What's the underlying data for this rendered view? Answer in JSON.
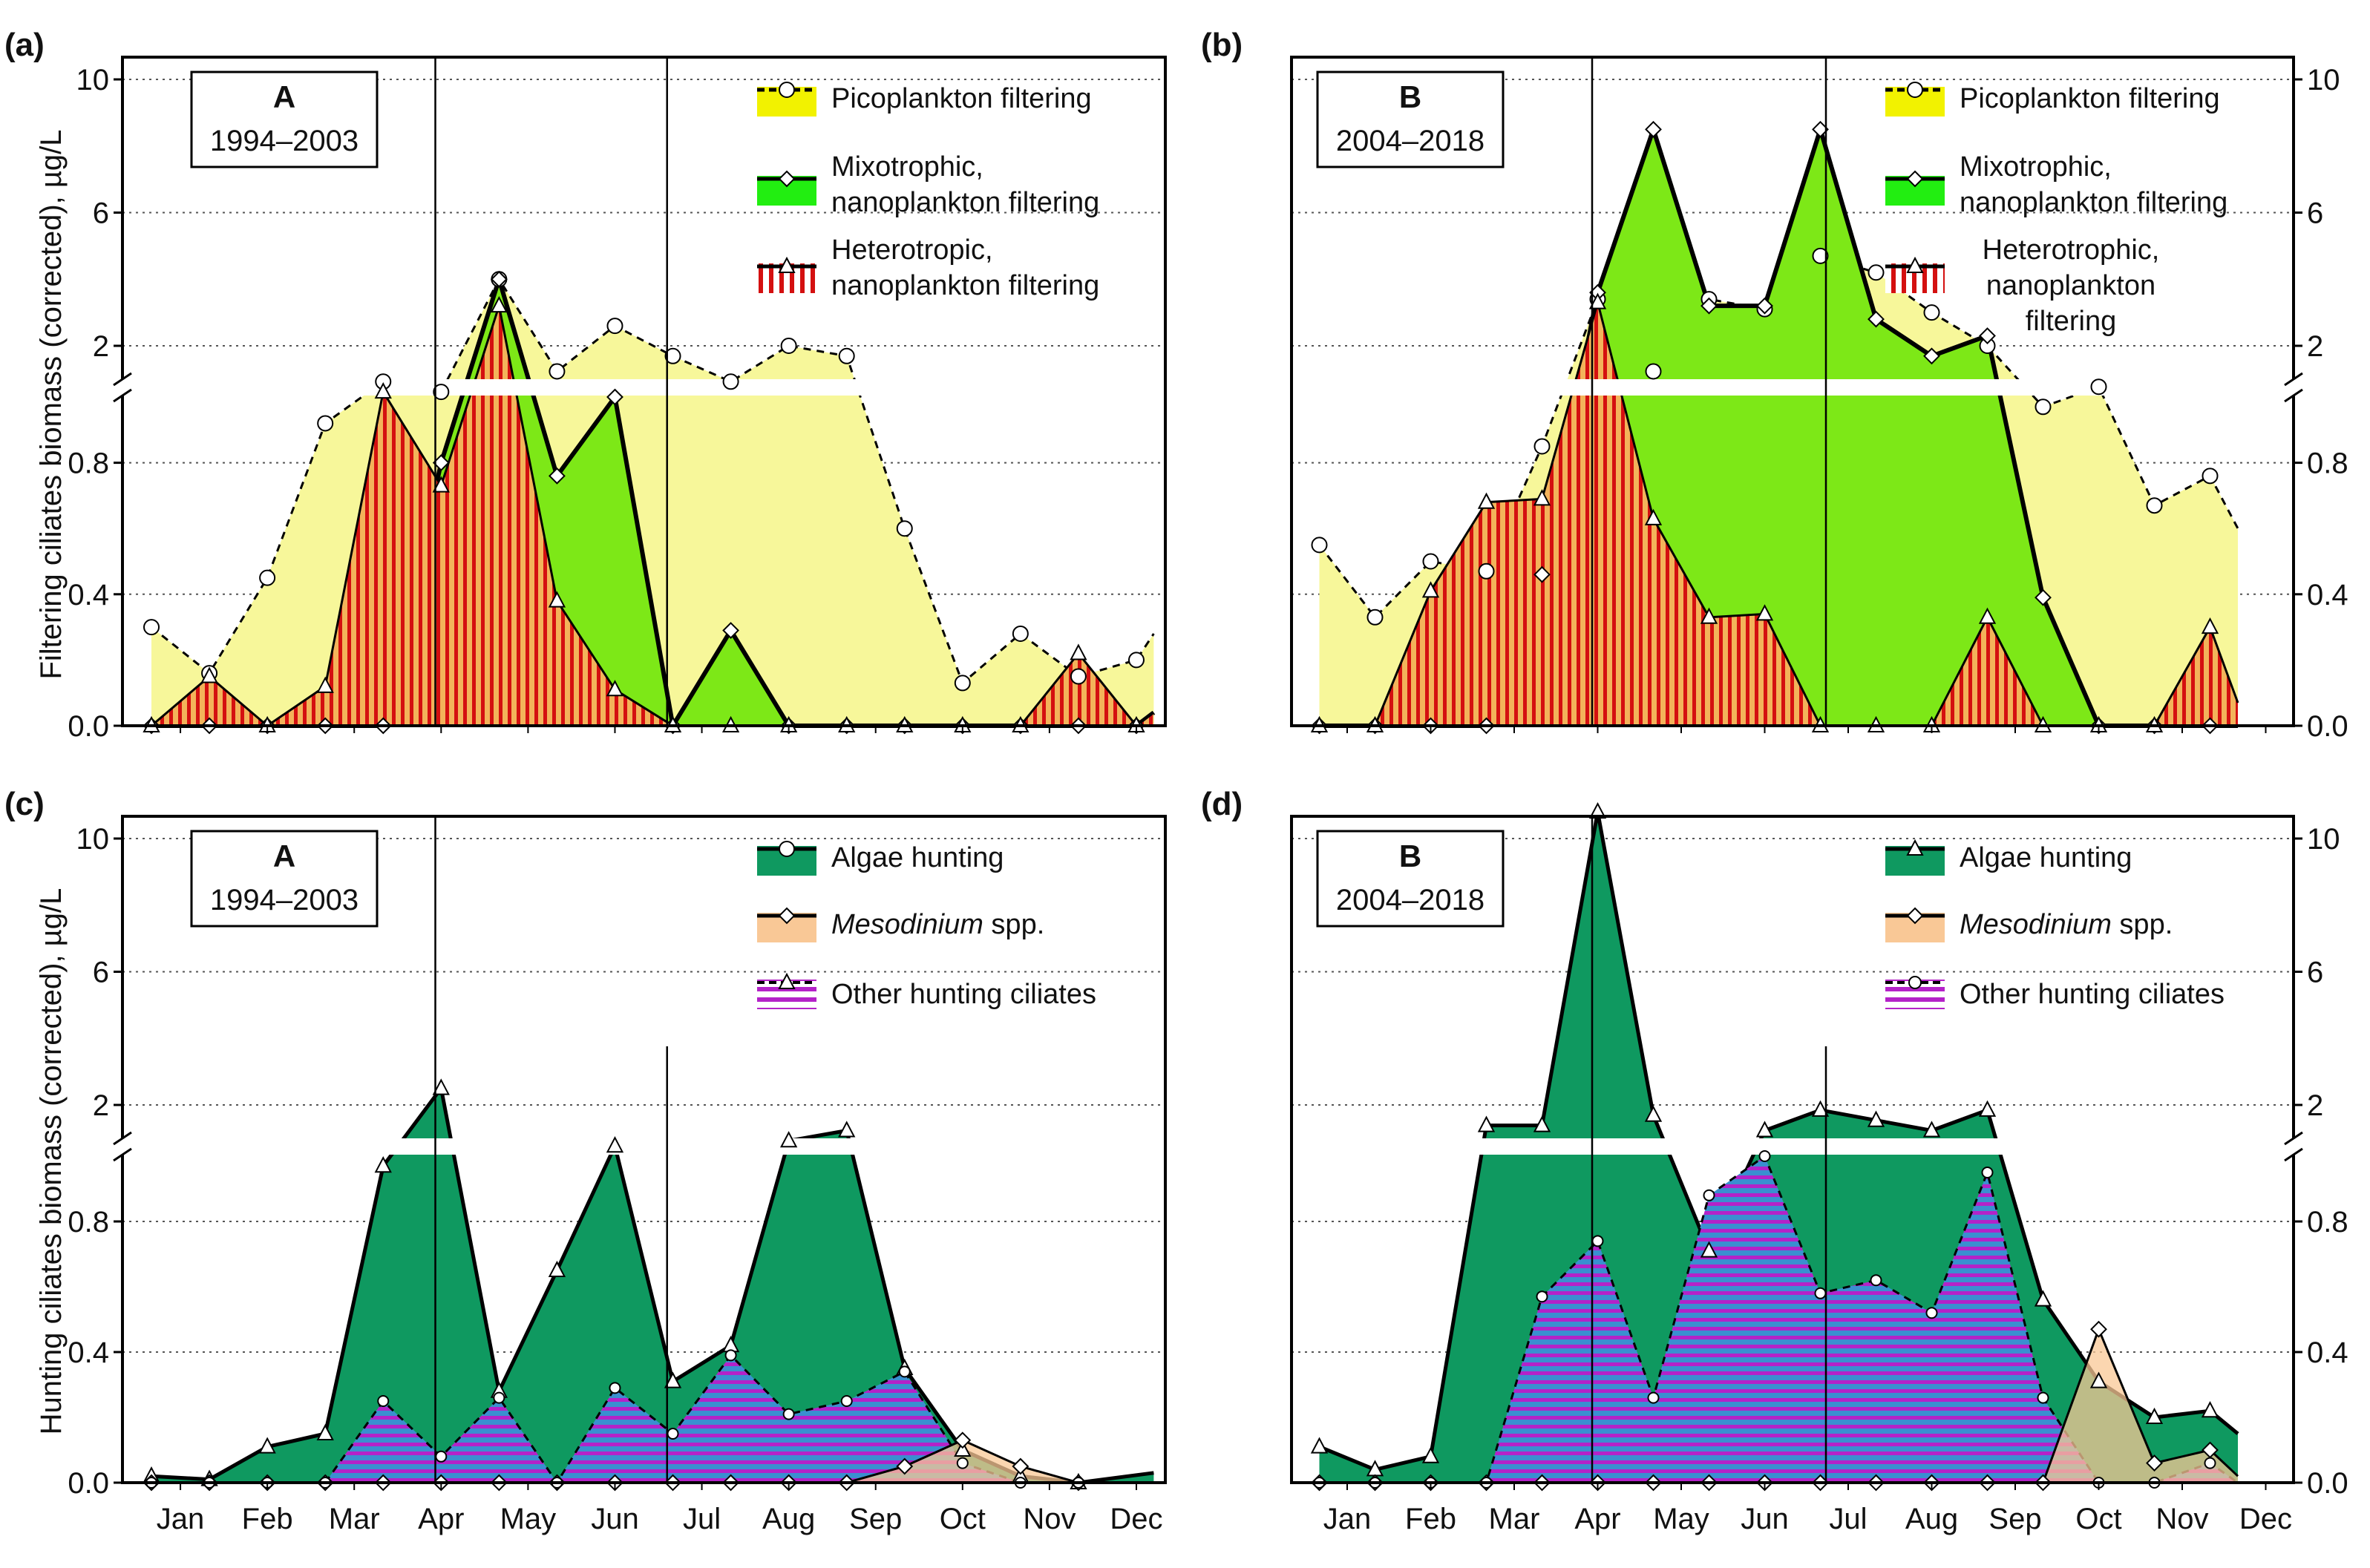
{
  "figure": {
    "y_label_top": "Filtering ciliates biomass (corrected), µg/L",
    "y_label_bottom": "Hunting ciliates biomass (corrected), µg/L",
    "x_tick_labels": [
      "Jan",
      "Feb",
      "Mar",
      "Apr",
      "May",
      "Jun",
      "Jul",
      "Aug",
      "Sep",
      "Oct",
      "Nov",
      "Dec"
    ],
    "y_ticks_lower": [
      "0.0",
      "0.4",
      "0.8"
    ],
    "y_ticks_upper": [
      "2",
      "6",
      "10"
    ],
    "colors": {
      "pico": "#f7f79a",
      "pico_legend": "#f2f200",
      "mixo": "#7de817",
      "mixo_legend": "#22ee11",
      "hetero_fill": "#f3b35a",
      "hetero_stripe": "#d41010",
      "algae": "#0f9960",
      "meso": "#f9c896",
      "other_fill": "#3a8fd0",
      "other_stripe": "#b422c8"
    }
  },
  "chart_data": [
    {
      "type": "area",
      "panel": "(a)",
      "box_label": "A",
      "box_years": "1994–2003",
      "y_axis_side": "left",
      "ylim_lower": [
        0,
        1.0
      ],
      "ylim_upper": [
        1.0,
        11
      ],
      "legend": [
        "Picoplankton filtering",
        "Mixotrophic,",
        "nanoplankton filtering",
        "Heterotropic,",
        "nanoplankton filtering"
      ],
      "vlines": [
        5.4,
        9.4
      ],
      "series": [
        {
          "name": "Picoplankton filtering",
          "x": [
            1,
            2,
            3,
            4,
            5,
            6,
            7,
            8,
            9,
            10,
            11,
            12,
            13,
            14,
            15,
            16,
            17,
            18,
            18.3
          ],
          "values": [
            0.3,
            0.16,
            0.45,
            0.92,
            1.3,
            1.1,
            4.0,
            1.5,
            2.6,
            1.8,
            1.3,
            2.0,
            1.8,
            0.6,
            0.13,
            0.28,
            0.15,
            0.2,
            0.28
          ]
        },
        {
          "name": "Mixotrophic, nanoplankton filtering",
          "x": [
            1,
            2,
            3,
            4,
            5,
            6,
            7,
            8,
            9,
            10,
            11,
            12,
            13,
            14,
            15,
            16,
            17,
            18,
            18.3
          ],
          "values": [
            0,
            0,
            0,
            0,
            0,
            0.8,
            4.0,
            0.76,
            1.0,
            0,
            0.29,
            0,
            0,
            0,
            0,
            0,
            0,
            0,
            0.04
          ]
        },
        {
          "name": "Heterotropic, nanoplankton filtering",
          "x": [
            1,
            2,
            3,
            4,
            5,
            6,
            7,
            8,
            9,
            10,
            11,
            12,
            13,
            14,
            15,
            16,
            17,
            18,
            18.3
          ],
          "values": [
            0,
            0.15,
            0,
            0.12,
            1.1,
            0.73,
            3.2,
            0.38,
            0.11,
            0,
            0,
            0,
            0,
            0,
            0,
            0,
            0.22,
            0,
            0.04
          ]
        }
      ]
    },
    {
      "type": "area",
      "panel": "(b)",
      "box_label": "B",
      "box_years": "2004–2018",
      "y_axis_side": "right",
      "ylim_lower": [
        0,
        1.0
      ],
      "ylim_upper": [
        1.0,
        11
      ],
      "legend": [
        "Picoplankton filtering",
        "Mixotrophic,",
        "nanoplankton filtering",
        "Heterotrophic,",
        "nanoplankton",
        "filtering"
      ],
      "vlines": [
        5.4,
        9.6
      ],
      "series": [
        {
          "name": "Picoplankton filtering",
          "x": [
            1,
            2,
            3,
            4,
            5,
            6,
            7,
            8,
            9,
            10,
            11,
            12,
            13,
            14,
            15,
            16,
            17,
            17.5
          ],
          "values": [
            0.55,
            0.33,
            0.5,
            0.47,
            0.85,
            3.4,
            1.5,
            3.4,
            3.1,
            4.7,
            4.2,
            3.0,
            2.0,
            0.97,
            1.2,
            0.67,
            0.76,
            0.6
          ]
        },
        {
          "name": "Mixotrophic, nanoplankton filtering",
          "x": [
            1,
            2,
            3,
            4,
            5,
            6,
            7,
            8,
            9,
            10,
            11,
            12,
            13,
            14,
            15,
            16,
            17,
            17.5
          ],
          "values": [
            0,
            0,
            0,
            0,
            0.46,
            3.6,
            8.5,
            3.2,
            3.2,
            8.5,
            2.8,
            1.8,
            2.3,
            0.39,
            0,
            0,
            0,
            0
          ]
        },
        {
          "name": "Heterotrophic, nanoplankton filtering",
          "x": [
            1,
            2,
            3,
            4,
            5,
            6,
            7,
            8,
            9,
            10,
            11,
            12,
            13,
            14,
            15,
            16,
            17,
            17.5
          ],
          "values": [
            0,
            0,
            0.41,
            0.68,
            0.69,
            3.3,
            0.63,
            0.33,
            0.34,
            0,
            0,
            0,
            0.33,
            0,
            0,
            0,
            0.3,
            0.07
          ]
        }
      ]
    },
    {
      "type": "area",
      "panel": "(c)",
      "box_label": "A",
      "box_years": "1994–2003",
      "y_axis_side": "left",
      "ylim_lower": [
        0,
        1.0
      ],
      "ylim_upper": [
        1.0,
        11
      ],
      "legend": [
        "Algae hunting",
        "Mesodinium",
        " spp.",
        "Other hunting ciliates"
      ],
      "vlines": [
        5.4,
        9.4
      ],
      "series": [
        {
          "name": "Algae hunting",
          "x": [
            1,
            2,
            3,
            4,
            5,
            6,
            7,
            8,
            9,
            10,
            11,
            12,
            13,
            14,
            15,
            16,
            17,
            18.3
          ],
          "values": [
            0.02,
            0.01,
            0.11,
            0.15,
            0.97,
            2.5,
            0.28,
            0.65,
            1.2,
            0.31,
            0.42,
            1.3,
            1.5,
            0.35,
            0.1,
            0.02,
            0,
            0.03
          ]
        },
        {
          "name": "Mesodinium spp.",
          "x": [
            1,
            2,
            3,
            4,
            5,
            6,
            7,
            8,
            9,
            10,
            11,
            12,
            13,
            14,
            15,
            16,
            17,
            18.3
          ],
          "values": [
            0,
            0,
            0,
            0,
            0,
            0,
            0,
            0,
            0,
            0,
            0,
            0,
            0,
            0.05,
            0.13,
            0.05,
            0,
            0
          ]
        },
        {
          "name": "Other hunting ciliates",
          "x": [
            1,
            2,
            3,
            4,
            5,
            6,
            7,
            8,
            9,
            10,
            11,
            12,
            13,
            14,
            15,
            16,
            17,
            18.3
          ],
          "values": [
            0,
            0,
            0,
            0,
            0.25,
            0.08,
            0.26,
            0,
            0.29,
            0.15,
            0.39,
            0.21,
            0.25,
            0.34,
            0.06,
            0,
            0,
            0
          ]
        }
      ]
    },
    {
      "type": "area",
      "panel": "(d)",
      "box_label": "B",
      "box_years": "2004–2018",
      "y_axis_side": "right",
      "ylim_lower": [
        0,
        1.0
      ],
      "ylim_upper": [
        1.0,
        11
      ],
      "legend": [
        "Algae hunting",
        "Mesodinium",
        " spp.",
        "Other hunting ciliates"
      ],
      "vlines": [
        5.4,
        9.6
      ],
      "series": [
        {
          "name": "Algae hunting",
          "x": [
            1,
            2,
            3,
            4,
            5,
            6,
            7,
            8,
            9,
            10,
            11,
            12,
            13,
            14,
            15,
            16,
            17,
            17.5
          ],
          "values": [
            0.11,
            0.04,
            0.08,
            1.6,
            1.6,
            10.8,
            1.8,
            0.71,
            1.5,
            1.9,
            1.7,
            1.5,
            1.9,
            0.56,
            0.31,
            0.2,
            0.22,
            0.15
          ]
        },
        {
          "name": "Mesodinium spp.",
          "x": [
            1,
            2,
            3,
            4,
            5,
            6,
            7,
            8,
            9,
            10,
            11,
            12,
            13,
            14,
            15,
            16,
            17,
            17.5
          ],
          "values": [
            0,
            0,
            0,
            0,
            0,
            0,
            0,
            0,
            0,
            0,
            0,
            0,
            0,
            0,
            0.47,
            0.06,
            0.1,
            0.02
          ]
        },
        {
          "name": "Other hunting ciliates",
          "x": [
            1,
            2,
            3,
            4,
            5,
            6,
            7,
            8,
            9,
            10,
            11,
            12,
            13,
            14,
            15,
            16,
            17,
            17.5
          ],
          "values": [
            0,
            0,
            0,
            0,
            0.57,
            0.74,
            0.26,
            0.88,
            1.0,
            0.58,
            0.62,
            0.52,
            0.95,
            0.26,
            0,
            0,
            0.06,
            0
          ]
        }
      ]
    }
  ]
}
